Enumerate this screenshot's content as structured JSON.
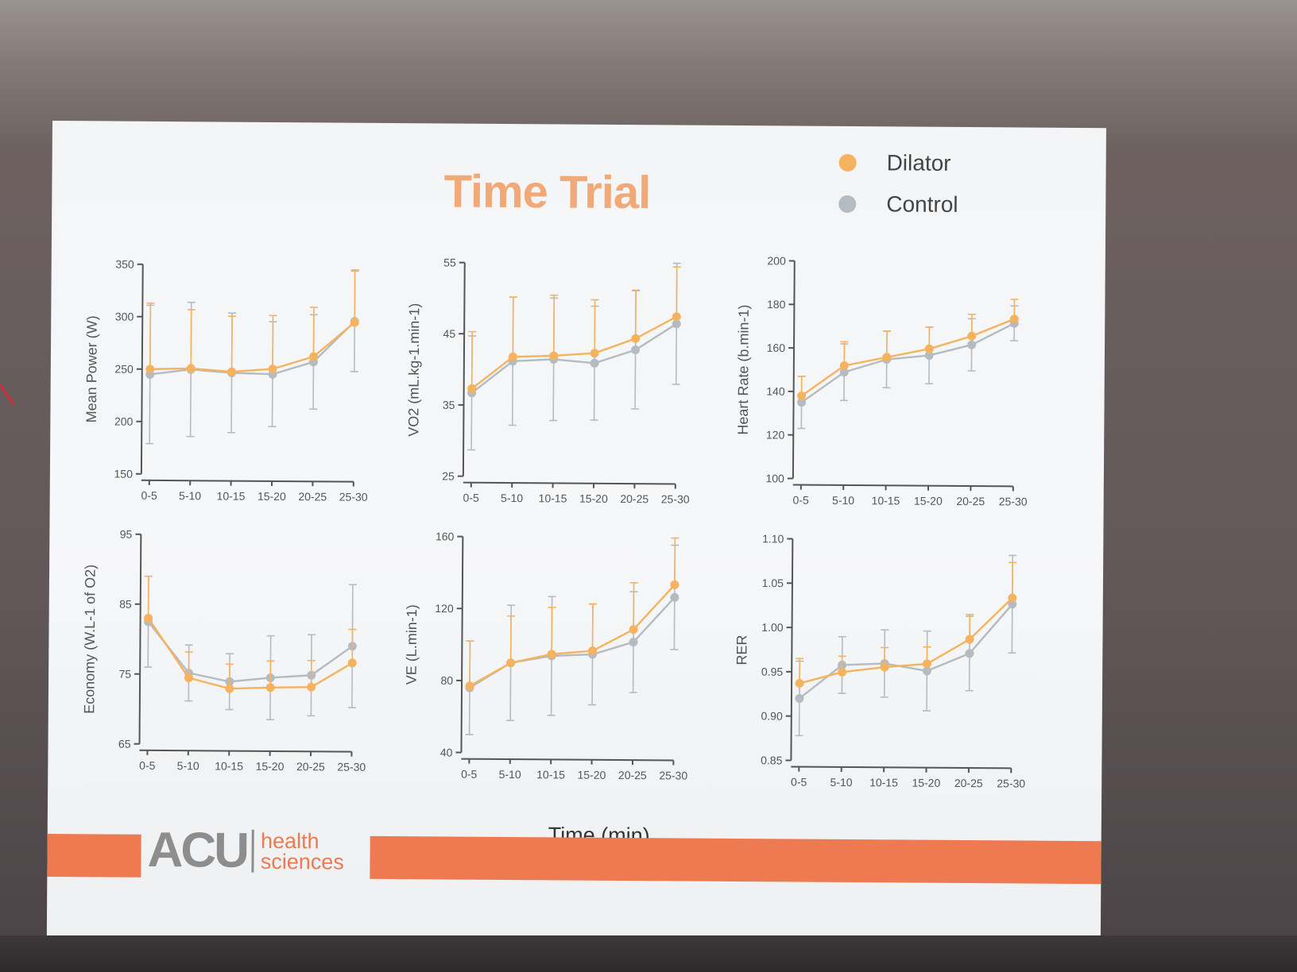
{
  "slide": {
    "title": "Time Trial",
    "x_axis_title": "Time (min)",
    "logo": {
      "main": "ACU",
      "sub_line1": "health",
      "sub_line2": "sciences"
    }
  },
  "legend": [
    {
      "name": "Dilator",
      "color": "#f5b35f"
    },
    {
      "name": "Control",
      "color": "#b4bcc2"
    }
  ],
  "chart_data": [
    {
      "type": "line",
      "ylabel": "Mean Power (W)",
      "categories": [
        "0-5",
        "5-10",
        "10-15",
        "15-20",
        "20-25",
        "25-30"
      ],
      "ylim": [
        150,
        350
      ],
      "yticks": [
        150,
        200,
        250,
        300,
        350
      ],
      "series": [
        {
          "name": "Dilator",
          "values": [
            250,
            251,
            248,
            251,
            263,
            296
          ],
          "err": [
            63,
            56,
            53,
            51,
            47,
            50
          ]
        },
        {
          "name": "Control",
          "values": [
            245,
            250,
            247,
            246,
            258,
            297
          ],
          "err": [
            66,
            64,
            57,
            50,
            45,
            48
          ]
        }
      ]
    },
    {
      "type": "line",
      "ylabel": "VO2 (mL.kg-1.min-1)",
      "categories": [
        "0-5",
        "5-10",
        "10-15",
        "15-20",
        "20-25",
        "25-30"
      ],
      "ylim": [
        25,
        55
      ],
      "yticks": [
        25,
        35,
        45,
        55
      ],
      "series": [
        {
          "name": "Dilator",
          "values": [
            37.3,
            41.8,
            42,
            42.4,
            44.5,
            47.6
          ],
          "err": [
            8,
            8.4,
            8.5,
            7.5,
            6.8,
            7
          ]
        },
        {
          "name": "Control",
          "values": [
            36.7,
            41.2,
            41.5,
            41,
            42.9,
            46.6
          ],
          "err": [
            8,
            9,
            8.6,
            8,
            8.3,
            8.5
          ]
        }
      ]
    },
    {
      "type": "line",
      "ylabel": "Heart Rate (b.min-1)",
      "categories": [
        "0-5",
        "5-10",
        "10-15",
        "15-20",
        "20-25",
        "25-30"
      ],
      "ylim": [
        100,
        200
      ],
      "yticks": [
        100,
        120,
        140,
        160,
        180,
        200
      ],
      "series": [
        {
          "name": "Dilator",
          "values": [
            138,
            152,
            156,
            160,
            166,
            174
          ],
          "err": [
            9,
            11,
            12,
            10,
            10,
            9
          ]
        },
        {
          "name": "Control",
          "values": [
            135,
            149,
            155,
            157,
            162,
            172
          ],
          "err": [
            12,
            13,
            13,
            13,
            12,
            8
          ]
        }
      ]
    },
    {
      "type": "line",
      "ylabel": "Economy (W.L-1 of O2)",
      "categories": [
        "0-5",
        "5-10",
        "10-15",
        "15-20",
        "20-25",
        "25-30"
      ],
      "ylim": [
        65,
        95
      ],
      "yticks": [
        65,
        75,
        85,
        95
      ],
      "series": [
        {
          "name": "Dilator",
          "values": [
            83,
            74.5,
            73,
            73.2,
            73.3,
            76.8
          ],
          "err": [
            6,
            3.7,
            3.5,
            3.8,
            3.8,
            4.8
          ]
        },
        {
          "name": "Control",
          "values": [
            82.5,
            75.2,
            74,
            74.6,
            75,
            79.2
          ],
          "err": [
            6.5,
            4,
            4,
            6,
            5.8,
            8.8
          ]
        }
      ]
    },
    {
      "type": "line",
      "ylabel": "VE (L.min-1)",
      "categories": [
        "0-5",
        "5-10",
        "10-15",
        "15-20",
        "20-25",
        "25-30"
      ],
      "ylim": [
        40,
        160
      ],
      "yticks": [
        40,
        80,
        120,
        160
      ],
      "series": [
        {
          "name": "Dilator",
          "values": [
            77,
            90,
            95,
            97,
            109,
            134
          ],
          "err": [
            25,
            26,
            26,
            26,
            26,
            26
          ]
        },
        {
          "name": "Control",
          "values": [
            76,
            90,
            94,
            95,
            102,
            127
          ],
          "err": [
            26,
            32,
            33,
            28,
            28,
            29
          ]
        }
      ]
    },
    {
      "type": "line",
      "ylabel": "RER",
      "categories": [
        "0-5",
        "5-10",
        "10-15",
        "15-20",
        "20-25",
        "25-30"
      ],
      "ylim": [
        0.85,
        1.1
      ],
      "yticks": [
        0.85,
        0.9,
        0.95,
        1.0,
        1.05,
        1.1
      ],
      "series": [
        {
          "name": "Dilator",
          "values": [
            0.937,
            0.95,
            0.956,
            0.96,
            0.988,
            1.035
          ],
          "err": [
            0.028,
            0.018,
            0.022,
            0.019,
            0.028,
            0.04
          ]
        },
        {
          "name": "Control",
          "values": [
            0.92,
            0.958,
            0.96,
            0.952,
            0.972,
            1.028
          ],
          "err": [
            0.042,
            0.032,
            0.038,
            0.045,
            0.042,
            0.055
          ]
        }
      ]
    }
  ]
}
